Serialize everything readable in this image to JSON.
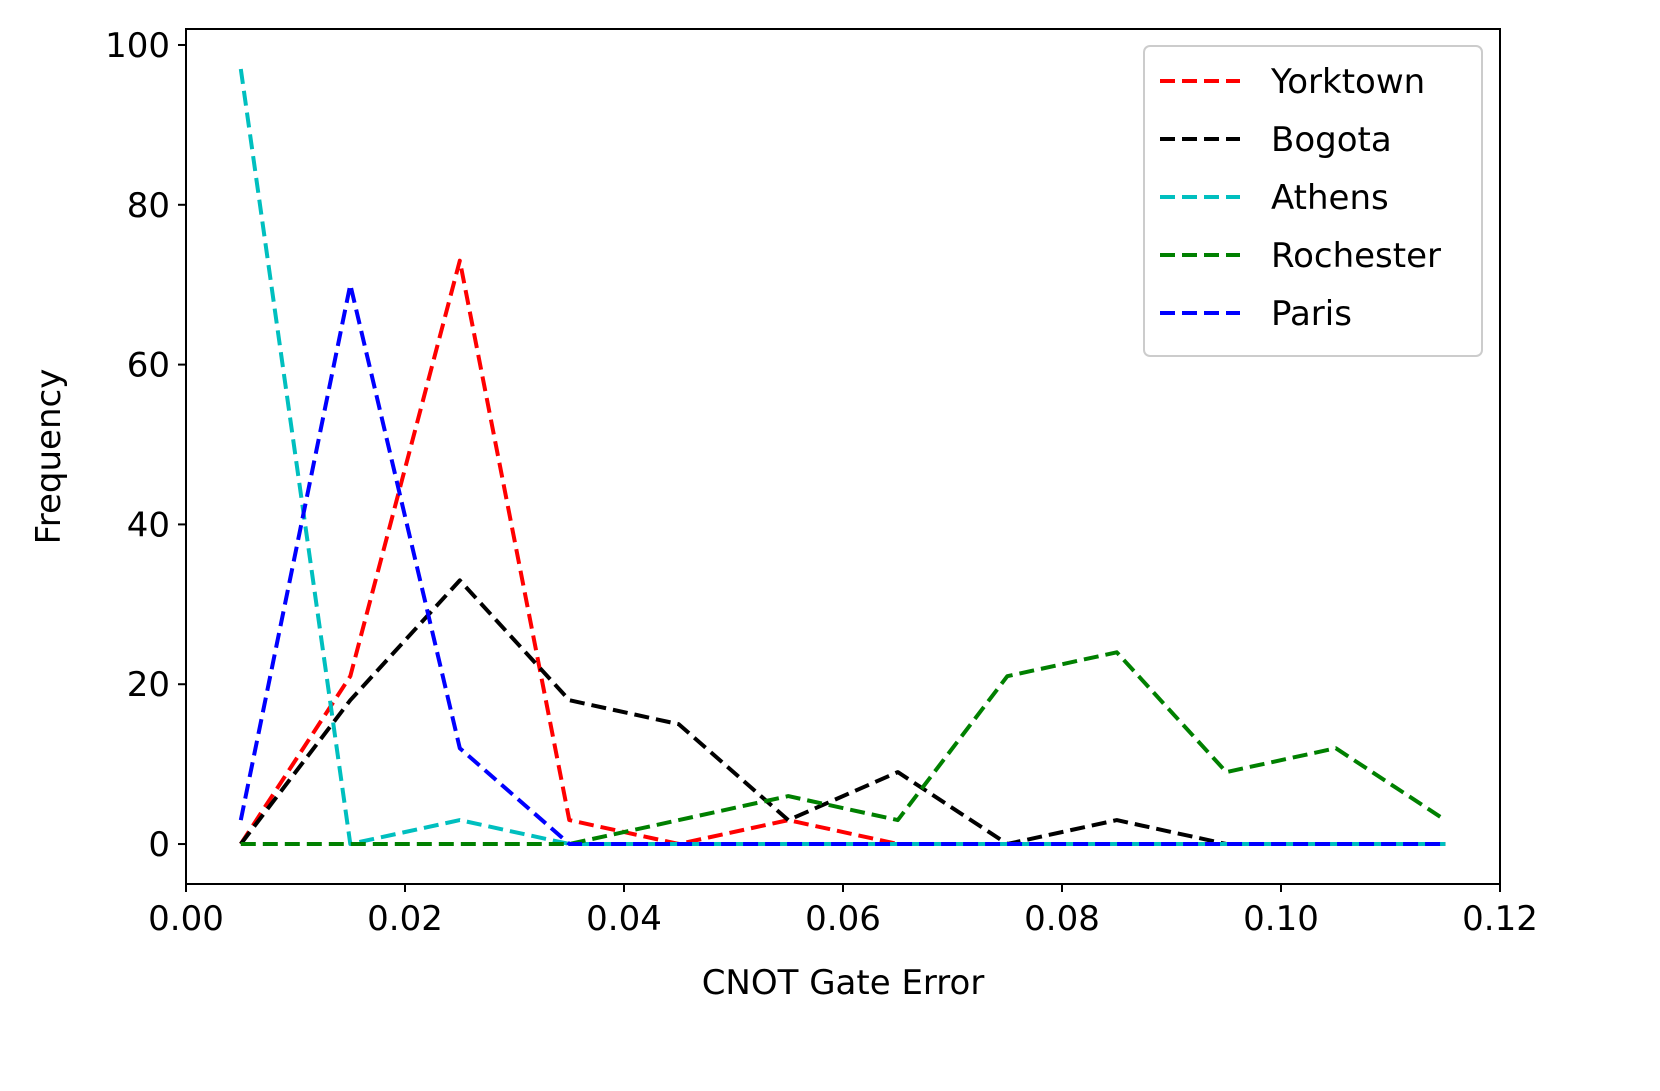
{
  "chart_data": {
    "type": "line",
    "xlabel": "CNOT Gate Error",
    "ylabel": "Frequency",
    "xlim": [
      0.0,
      0.12
    ],
    "ylim": [
      -5,
      102
    ],
    "x_ticks": [
      0.0,
      0.02,
      0.04,
      0.06,
      0.08,
      0.1,
      0.12
    ],
    "x_tick_labels": [
      "0.00",
      "0.02",
      "0.04",
      "0.06",
      "0.08",
      "0.10",
      "0.12"
    ],
    "y_ticks": [
      0,
      20,
      40,
      60,
      80,
      100
    ],
    "y_tick_labels": [
      "0",
      "20",
      "40",
      "60",
      "80",
      "100"
    ],
    "grid": false,
    "legend_position": "top-right",
    "line_style": "dashed",
    "x": [
      0.005,
      0.015,
      0.025,
      0.035,
      0.045,
      0.055,
      0.065,
      0.075,
      0.085,
      0.095,
      0.105,
      0.115
    ],
    "series": [
      {
        "name": "Yorktown",
        "color": "#ff0000",
        "values": [
          0,
          21,
          73,
          3,
          0,
          3,
          0,
          0,
          0,
          0,
          0,
          0
        ]
      },
      {
        "name": "Bogota",
        "color": "#000000",
        "values": [
          0,
          18,
          33,
          18,
          15,
          3,
          9,
          0,
          3,
          0,
          0,
          0
        ]
      },
      {
        "name": "Athens",
        "color": "#00bfbf",
        "values": [
          97,
          0,
          3,
          0,
          0,
          0,
          0,
          0,
          0,
          0,
          0,
          0
        ]
      },
      {
        "name": "Rochester",
        "color": "#008000",
        "values": [
          0,
          0,
          0,
          0,
          3,
          6,
          3,
          21,
          24,
          9,
          12,
          3
        ]
      },
      {
        "name": "Paris",
        "color": "#0000ff",
        "values": [
          3,
          70,
          12,
          0,
          0,
          0,
          0,
          0,
          0,
          0,
          0,
          0
        ]
      }
    ]
  }
}
